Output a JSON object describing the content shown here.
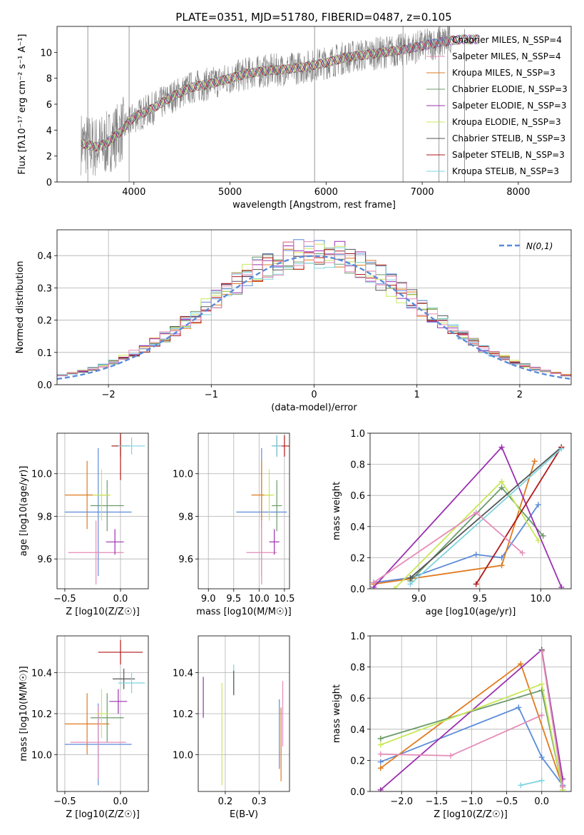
{
  "title": "PLATE=0351, MJD=51780, FIBERID=0487, z=0.105",
  "colors": [
    "#5b8bd9",
    "#e07a1f",
    "#6a9a6a",
    "#9b30b0",
    "#c8e85a",
    "#555555",
    "#b01818",
    "#7fd3e0",
    "#e58bb8"
  ],
  "chart_data": [
    {
      "id": "spectrum",
      "type": "line",
      "xlabel": "wavelength [Angstrom, rest frame]",
      "ylabel": "Flux [fλ10⁻¹⁷ erg cm⁻² s⁻¹ A⁻¹]",
      "xlim": [
        3200,
        8550
      ],
      "ylim": [
        0,
        12
      ],
      "xticks": [
        4000,
        5000,
        6000,
        7000,
        8000
      ],
      "yticks": [
        0,
        2,
        4,
        6,
        8,
        10
      ],
      "grid": false,
      "legend": "upper right",
      "model_legend": [
        "Chabrier MILES, N_SSP=4",
        "Salpeter MILES, N_SSP=4",
        "Kroupa MILES, N_SSP=3",
        "Chabrier ELODIE, N_SSP=3",
        "Salpeter ELODIE, N_SSP=3",
        "Kroupa ELODIE, N_SSP=3",
        "Chabrier STELIB, N_SSP=3",
        "Salpeter STELIB, N_SSP=3",
        "Kroupa STELIB, N_SSP=3"
      ],
      "model_colors": [
        "#5b8bd9",
        "#e58bb8",
        "#e07a1f",
        "#6a9a6a",
        "#9b30b0",
        "#c8e85a",
        "#555555",
        "#b01818",
        "#7fd3e0"
      ],
      "continuum": {
        "x": [
          3450,
          3600,
          3700,
          3850,
          4000,
          4200,
          4400,
          4600,
          4800,
          5000,
          5200,
          5400,
          5600,
          5800,
          6000,
          6200,
          6400,
          6600,
          6800,
          7000,
          7200,
          7400
        ],
        "y": [
          3.0,
          2.7,
          2.9,
          3.8,
          5.0,
          5.7,
          6.6,
          7.3,
          7.6,
          8.0,
          8.4,
          8.6,
          8.7,
          8.9,
          9.2,
          9.6,
          9.8,
          10.0,
          10.2,
          10.5,
          10.8,
          11.0
        ]
      }
    },
    {
      "id": "residuals",
      "type": "line",
      "xlabel": "(data-model)/error",
      "ylabel": "Normed distribution",
      "xlim": [
        -2.5,
        2.5
      ],
      "ylim": [
        0,
        0.48
      ],
      "xticks": [
        -2,
        -1,
        0,
        1,
        2
      ],
      "yticks": [
        0.0,
        0.1,
        0.2,
        0.3,
        0.4
      ],
      "grid": true,
      "legend": "upper right",
      "series": [
        {
          "name": "N(0,1)",
          "mu": 0,
          "sigma": 1
        }
      ]
    },
    {
      "id": "age-vs-Z",
      "type": "scatter",
      "xlabel": "Z [log10(Z/Z☉)]",
      "ylabel": "age [log10(age/yr)]",
      "xlim": [
        -0.57,
        0.25
      ],
      "ylim": [
        9.46,
        10.19
      ],
      "xticks": [
        -0.5,
        0.0
      ],
      "yticks": [
        9.6,
        9.8,
        10.0
      ],
      "grid": true,
      "points": [
        {
          "x": -0.3,
          "y": 9.9,
          "xe": 0.2,
          "ye": 0.16,
          "c": 1
        },
        {
          "x": -0.2,
          "y": 9.82,
          "xe": 0.3,
          "ye": 0.3,
          "c": 0
        },
        {
          "x": -0.12,
          "y": 9.85,
          "xe": 0.15,
          "ye": 0.12,
          "c": 2
        },
        {
          "x": -0.17,
          "y": 9.9,
          "xe": 0.08,
          "ye": 0.12,
          "c": 4
        },
        {
          "x": -0.22,
          "y": 9.63,
          "xe": 0.25,
          "ye": 0.15,
          "c": 8
        },
        {
          "x": -0.05,
          "y": 9.68,
          "xe": 0.08,
          "ye": 0.06,
          "c": 3
        },
        {
          "x": 0.0,
          "y": 10.13,
          "xe": 0.08,
          "ye": 0.05,
          "c": 5
        },
        {
          "x": 0.0,
          "y": 10.13,
          "xe": 0.08,
          "ye": 0.16,
          "c": 6
        },
        {
          "x": 0.1,
          "y": 10.13,
          "xe": 0.12,
          "ye": 0.04,
          "c": 7
        }
      ]
    },
    {
      "id": "age-vs-mass",
      "type": "scatter",
      "xlabel": "mass [log10(M/M☉)]",
      "ylabel": "",
      "xlim": [
        8.8,
        10.6
      ],
      "ylim": [
        9.46,
        10.19
      ],
      "xticks": [
        9.0,
        9.5,
        10.0,
        10.5
      ],
      "yticks": [
        9.6,
        9.8,
        10.0
      ],
      "grid": true,
      "points": [
        {
          "x": 10.05,
          "y": 9.82,
          "xe": 0.5,
          "ye": 0.3,
          "c": 0
        },
        {
          "x": 10.05,
          "y": 9.9,
          "xe": 0.2,
          "ye": 0.16,
          "c": 1
        },
        {
          "x": 10.35,
          "y": 9.85,
          "xe": 0.1,
          "ye": 0.12,
          "c": 2
        },
        {
          "x": 10.2,
          "y": 9.9,
          "xe": 0.1,
          "ye": 0.12,
          "c": 4
        },
        {
          "x": 10.05,
          "y": 9.63,
          "xe": 0.3,
          "ye": 0.15,
          "c": 8
        },
        {
          "x": 10.3,
          "y": 9.68,
          "xe": 0.1,
          "ye": 0.06,
          "c": 3
        },
        {
          "x": 10.35,
          "y": 10.13,
          "xe": 0.1,
          "ye": 0.05,
          "c": 5
        },
        {
          "x": 10.5,
          "y": 10.13,
          "xe": 0.2,
          "ye": 0.05,
          "c": 6
        },
        {
          "x": 10.35,
          "y": 10.13,
          "xe": 0.1,
          "ye": 0.05,
          "c": 7
        }
      ]
    },
    {
      "id": "weight-vs-age",
      "type": "line",
      "xlabel": "age [log10(age/yr)]",
      "ylabel": "mass weight",
      "xlim": [
        8.6,
        10.25
      ],
      "ylim": [
        0,
        1.0
      ],
      "xticks": [
        9.0,
        9.5,
        10.0
      ],
      "yticks": [
        0.0,
        0.2,
        0.4,
        0.6,
        0.8,
        1.0
      ],
      "grid": true,
      "series": [
        {
          "x": [
            8.63,
            8.93,
            9.47,
            9.68,
            9.98
          ],
          "y": [
            0.04,
            0.07,
            0.22,
            0.2,
            0.54
          ],
          "c": 0
        },
        {
          "x": [
            8.63,
            9.68,
            9.95
          ],
          "y": [
            0.03,
            0.15,
            0.82
          ],
          "c": 1
        },
        {
          "x": [
            8.93,
            9.68,
            10.02
          ],
          "y": [
            0.05,
            0.65,
            0.34
          ],
          "c": 2
        },
        {
          "x": [
            8.63,
            9.68,
            10.17
          ],
          "y": [
            0.01,
            0.91,
            0.01
          ],
          "c": 3
        },
        {
          "x": [
            8.8,
            9.68,
            9.98
          ],
          "y": [
            0.0,
            0.69,
            0.31
          ],
          "c": 4
        },
        {
          "x": [
            8.93,
            10.17
          ],
          "y": [
            0.07,
            0.91
          ],
          "c": 5
        },
        {
          "x": [
            9.47,
            10.17
          ],
          "y": [
            0.03,
            0.91
          ],
          "c": 6
        },
        {
          "x": [
            8.93,
            10.17
          ],
          "y": [
            0.03,
            0.9
          ],
          "c": 7
        },
        {
          "x": [
            8.63,
            9.47,
            9.85
          ],
          "y": [
            0.04,
            0.49,
            0.23
          ],
          "c": 8
        }
      ]
    },
    {
      "id": "mass-vs-Z",
      "type": "scatter",
      "xlabel": "Z [log10(Z/Z☉)]",
      "ylabel": "mass [log10(M/M☉)]",
      "xlim": [
        -0.57,
        0.25
      ],
      "ylim": [
        9.82,
        10.58
      ],
      "xticks": [
        -0.5,
        0.0
      ],
      "yticks": [
        10.0,
        10.2,
        10.4
      ],
      "grid": true,
      "points": [
        {
          "x": -0.2,
          "y": 10.05,
          "xe": 0.3,
          "ye": 0.2,
          "c": 0
        },
        {
          "x": -0.3,
          "y": 10.15,
          "xe": 0.2,
          "ye": 0.15,
          "c": 1
        },
        {
          "x": -0.12,
          "y": 10.18,
          "xe": 0.15,
          "ye": 0.12,
          "c": 2
        },
        {
          "x": -0.17,
          "y": 10.2,
          "xe": 0.06,
          "ye": 0.12,
          "c": 4
        },
        {
          "x": -0.2,
          "y": 10.06,
          "xe": 0.25,
          "ye": 0.18,
          "c": 8
        },
        {
          "x": -0.02,
          "y": 10.26,
          "xe": 0.08,
          "ye": 0.06,
          "c": 3
        },
        {
          "x": 0.03,
          "y": 10.37,
          "xe": 0.1,
          "ye": 0.05,
          "c": 5
        },
        {
          "x": 0.0,
          "y": 10.5,
          "xe": 0.2,
          "ye": 0.06,
          "c": 6
        },
        {
          "x": 0.1,
          "y": 10.35,
          "xe": 0.12,
          "ye": 0.05,
          "c": 7
        }
      ]
    },
    {
      "id": "mass-vs-EBV",
      "type": "scatter",
      "xlabel": "E(B-V)",
      "ylabel": "",
      "xlim": [
        0.12,
        0.39
      ],
      "ylim": [
        9.82,
        10.58
      ],
      "xticks": [
        0.2,
        0.3
      ],
      "yticks": [
        10.0,
        10.2,
        10.4
      ],
      "grid": true,
      "points": [
        {
          "x": 0.135,
          "y": 10.28,
          "ye": 0.1,
          "c": 3
        },
        {
          "x": 0.19,
          "y": 10.1,
          "ye": 0.25,
          "c": 4
        },
        {
          "x": 0.225,
          "y": 10.37,
          "ye": 0.07,
          "c": 7
        },
        {
          "x": 0.225,
          "y": 10.35,
          "ye": 0.06,
          "c": 5
        },
        {
          "x": 0.36,
          "y": 10.1,
          "ye": 0.17,
          "c": 0
        },
        {
          "x": 0.365,
          "y": 10.05,
          "ye": 0.18,
          "c": 1
        },
        {
          "x": 0.37,
          "y": 10.2,
          "ye": 0.16,
          "c": 8
        }
      ]
    },
    {
      "id": "weight-vs-Z",
      "type": "line",
      "xlabel": "Z [log10(Z/Z☉)]",
      "ylabel": "mass weight",
      "xlim": [
        -2.45,
        0.42
      ],
      "ylim": [
        0,
        1.0
      ],
      "xticks": [
        -2.0,
        -1.5,
        -1.0,
        -0.5,
        0.0
      ],
      "yticks": [
        0.0,
        0.2,
        0.4,
        0.6,
        0.8,
        1.0
      ],
      "grid": true,
      "series": [
        {
          "x": [
            -2.3,
            -0.33,
            0.0,
            0.3
          ],
          "y": [
            0.19,
            0.54,
            0.22,
            0.04
          ],
          "c": 0
        },
        {
          "x": [
            -2.3,
            -0.3,
            0.3
          ],
          "y": [
            0.15,
            0.82,
            0.03
          ],
          "c": 1
        },
        {
          "x": [
            -2.3,
            0.0,
            0.3
          ],
          "y": [
            0.34,
            0.65,
            0.01
          ],
          "c": 2
        },
        {
          "x": [
            -2.3,
            0.0,
            0.3
          ],
          "y": [
            0.01,
            0.91,
            0.08
          ],
          "c": 3
        },
        {
          "x": [
            -2.3,
            0.0,
            0.3
          ],
          "y": [
            0.3,
            0.69,
            0.01
          ],
          "c": 4
        },
        {
          "x": [
            -0.3,
            0.0
          ],
          "y": [
            0.04,
            0.07
          ],
          "c": 7
        },
        {
          "x": [
            0.0,
            0.3
          ],
          "y": [
            0.91,
            0.03
          ],
          "c": 5
        },
        {
          "x": [
            0.0,
            0.3
          ],
          "y": [
            0.9,
            0.03
          ],
          "c": 8
        },
        {
          "x": [
            -2.3,
            -1.3,
            0.0
          ],
          "y": [
            0.24,
            0.23,
            0.49
          ],
          "c": 8
        }
      ]
    }
  ]
}
